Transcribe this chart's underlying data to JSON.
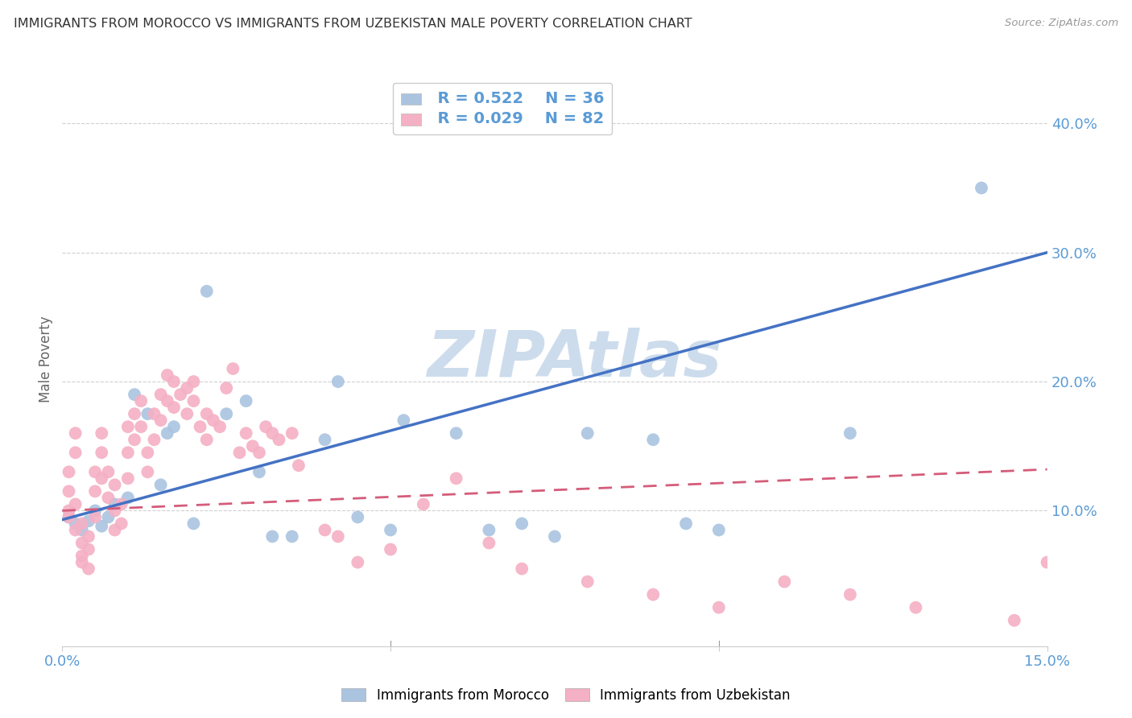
{
  "title": "IMMIGRANTS FROM MOROCCO VS IMMIGRANTS FROM UZBEKISTAN MALE POVERTY CORRELATION CHART",
  "source": "Source: ZipAtlas.com",
  "ylabel": "Male Poverty",
  "xlim": [
    0,
    0.15
  ],
  "ylim": [
    -0.005,
    0.44
  ],
  "yticks": [
    0.1,
    0.2,
    0.3,
    0.4
  ],
  "ytick_labels": [
    "10.0%",
    "20.0%",
    "30.0%",
    "40.0%"
  ],
  "xtick_labels": [
    "0.0%",
    "",
    "",
    "15.0%"
  ],
  "morocco_color": "#aac4e0",
  "morocco_line_color": "#4472c4",
  "uzbekistan_color": "#f4b0c4",
  "uzbekistan_line_color": "#d45c7a",
  "legend_R_morocco": "R = 0.522",
  "legend_N_morocco": "N = 36",
  "legend_R_uzbekistan": "R = 0.029",
  "legend_N_uzbekistan": "N = 82",
  "legend_label_morocco": "Immigrants from Morocco",
  "legend_label_uzbekistan": "Immigrants from Uzbekistan",
  "watermark": "ZIPAtlas",
  "morocco_x": [
    0.001,
    0.002,
    0.003,
    0.004,
    0.005,
    0.006,
    0.007,
    0.008,
    0.01,
    0.011,
    0.013,
    0.015,
    0.016,
    0.017,
    0.02,
    0.022,
    0.025,
    0.028,
    0.03,
    0.032,
    0.035,
    0.04,
    0.042,
    0.045,
    0.05,
    0.052,
    0.06,
    0.065,
    0.07,
    0.075,
    0.08,
    0.09,
    0.095,
    0.1,
    0.12,
    0.14
  ],
  "morocco_y": [
    0.095,
    0.09,
    0.085,
    0.092,
    0.1,
    0.088,
    0.095,
    0.105,
    0.11,
    0.19,
    0.175,
    0.12,
    0.16,
    0.165,
    0.09,
    0.27,
    0.175,
    0.185,
    0.13,
    0.08,
    0.08,
    0.155,
    0.2,
    0.095,
    0.085,
    0.17,
    0.16,
    0.085,
    0.09,
    0.08,
    0.16,
    0.155,
    0.09,
    0.085,
    0.16,
    0.35
  ],
  "uzbekistan_x": [
    0.001,
    0.001,
    0.001,
    0.001,
    0.002,
    0.002,
    0.002,
    0.002,
    0.003,
    0.003,
    0.003,
    0.003,
    0.004,
    0.004,
    0.004,
    0.005,
    0.005,
    0.005,
    0.006,
    0.006,
    0.006,
    0.007,
    0.007,
    0.008,
    0.008,
    0.008,
    0.009,
    0.009,
    0.01,
    0.01,
    0.01,
    0.011,
    0.011,
    0.012,
    0.012,
    0.013,
    0.013,
    0.014,
    0.014,
    0.015,
    0.015,
    0.016,
    0.016,
    0.017,
    0.017,
    0.018,
    0.019,
    0.019,
    0.02,
    0.02,
    0.021,
    0.022,
    0.022,
    0.023,
    0.024,
    0.025,
    0.026,
    0.027,
    0.028,
    0.029,
    0.03,
    0.031,
    0.032,
    0.033,
    0.035,
    0.036,
    0.04,
    0.042,
    0.045,
    0.05,
    0.055,
    0.06,
    0.065,
    0.07,
    0.08,
    0.09,
    0.1,
    0.11,
    0.12,
    0.13,
    0.145,
    0.15
  ],
  "uzbekistan_y": [
    0.1,
    0.115,
    0.13,
    0.095,
    0.16,
    0.145,
    0.105,
    0.085,
    0.09,
    0.075,
    0.065,
    0.06,
    0.08,
    0.07,
    0.055,
    0.13,
    0.115,
    0.095,
    0.16,
    0.145,
    0.125,
    0.13,
    0.11,
    0.12,
    0.1,
    0.085,
    0.105,
    0.09,
    0.165,
    0.145,
    0.125,
    0.175,
    0.155,
    0.185,
    0.165,
    0.13,
    0.145,
    0.175,
    0.155,
    0.19,
    0.17,
    0.205,
    0.185,
    0.2,
    0.18,
    0.19,
    0.195,
    0.175,
    0.2,
    0.185,
    0.165,
    0.175,
    0.155,
    0.17,
    0.165,
    0.195,
    0.21,
    0.145,
    0.16,
    0.15,
    0.145,
    0.165,
    0.16,
    0.155,
    0.16,
    0.135,
    0.085,
    0.08,
    0.06,
    0.07,
    0.105,
    0.125,
    0.075,
    0.055,
    0.045,
    0.035,
    0.025,
    0.045,
    0.035,
    0.025,
    0.015,
    0.06
  ],
  "morocco_trend_x": [
    0.0,
    0.15
  ],
  "morocco_trend_y": [
    0.093,
    0.3
  ],
  "uzbekistan_trend_x": [
    0.0,
    0.15
  ],
  "uzbekistan_trend_y": [
    0.1,
    0.132
  ],
  "grid_color": "#d0d0d0",
  "title_color": "#333333",
  "axis_color": "#5b9bd5",
  "watermark_color": "#ccdcec",
  "background_color": "#ffffff"
}
